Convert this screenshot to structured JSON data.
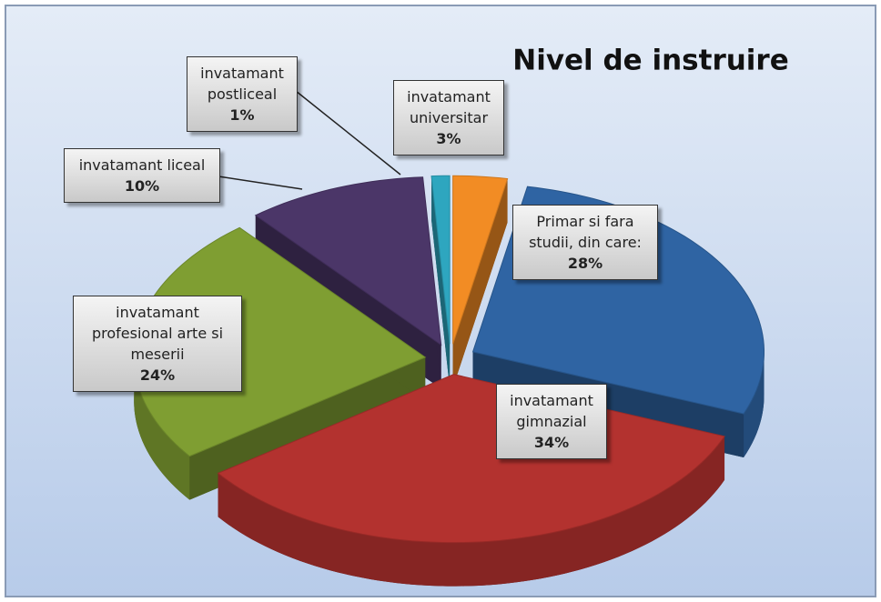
{
  "chart_data": {
    "type": "pie3d",
    "title": "Nivel de instruire",
    "categories": [
      "Primar si fara studii, din care:",
      "invatamant gimnazial",
      "invatamant profesional arte si meserii",
      "invatamant liceal",
      "invatamant postliceal",
      "invatamant universitar"
    ],
    "values": [
      28,
      34,
      24,
      10,
      1,
      3
    ],
    "value_labels": [
      "28%",
      "34%",
      "24%",
      "10%",
      "1%",
      "3%"
    ],
    "colors": [
      "#2f64a3",
      "#b3322f",
      "#7f9e32",
      "#4b3668",
      "#2ea6bf",
      "#f28c24"
    ]
  }
}
